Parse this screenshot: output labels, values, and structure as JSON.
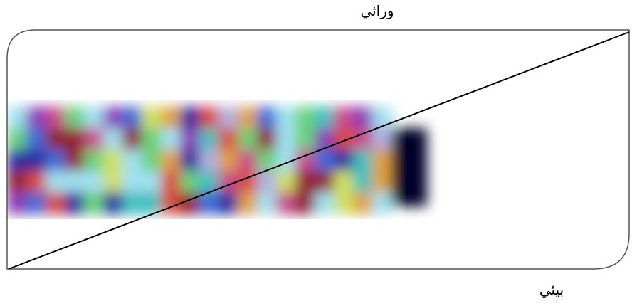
{
  "labels": {
    "top": "وراثي",
    "bottom": "بيئي"
  }
}
